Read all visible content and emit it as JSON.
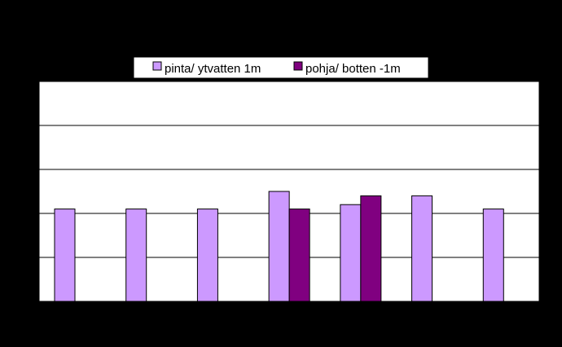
{
  "chart_data": {
    "type": "bar",
    "title": "",
    "xlabel": "",
    "ylabel": "",
    "categories": [
      "",
      "",
      "",
      "",
      "",
      "",
      ""
    ],
    "ylim": [
      0,
      10
    ],
    "yticks": [
      0,
      2,
      4,
      6,
      8,
      10
    ],
    "grid": true,
    "legend_position": "top",
    "series": [
      {
        "name": "pinta/ ytvatten 1m",
        "color": "#cc99ff",
        "values": [
          4.2,
          4.2,
          4.2,
          5.0,
          4.4,
          4.8,
          4.2
        ]
      },
      {
        "name": "pohja/ botten -1m",
        "color": "#800080",
        "values": [
          null,
          null,
          null,
          4.2,
          4.8,
          null,
          null
        ]
      }
    ]
  }
}
